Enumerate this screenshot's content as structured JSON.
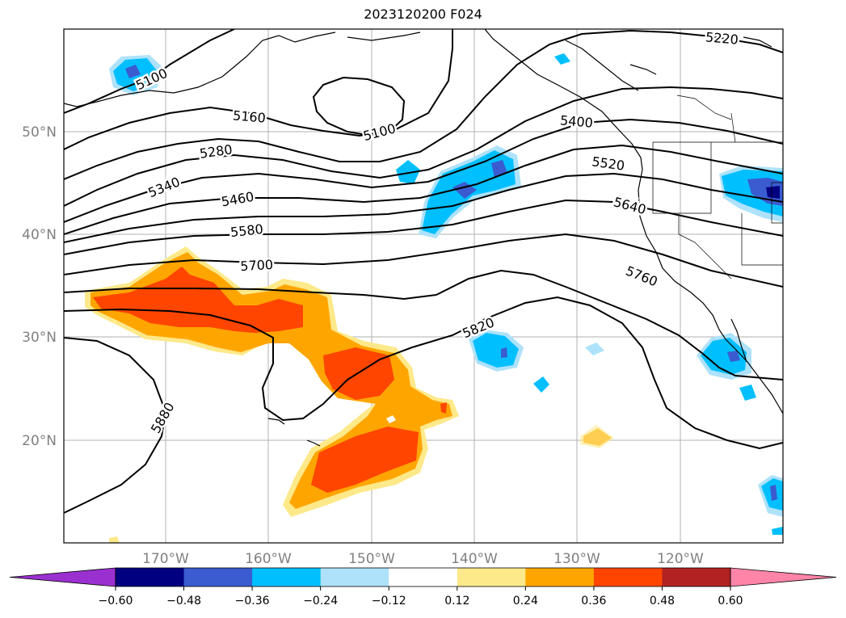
{
  "title": "2023120200 F024",
  "lat_labels": [
    "50°N",
    "40°N",
    "30°N",
    "20°N"
  ],
  "lon_labels": [
    "170°W",
    "160°W",
    "150°W",
    "140°W",
    "130°W",
    "120°W"
  ],
  "contour_labels": [
    "5100",
    "5160",
    "5100",
    "5220",
    "5280",
    "5340",
    "5400",
    "5460",
    "5520",
    "5580",
    "5640",
    "5700",
    "5760",
    "5820",
    "5880"
  ],
  "colorbar": {
    "ticks": [
      "−0.60",
      "−0.48",
      "−0.36",
      "−0.24",
      "−0.12",
      "0.12",
      "0.24",
      "0.36",
      "0.48",
      "0.60"
    ],
    "colors": [
      "#9b30d0",
      "#000080",
      "#3a5cd0",
      "#00bfff",
      "#aee2fa",
      "#ffffff",
      "#fde98a",
      "#ffa500",
      "#ff4500",
      "#b22222",
      "#ff85a8"
    ]
  }
}
